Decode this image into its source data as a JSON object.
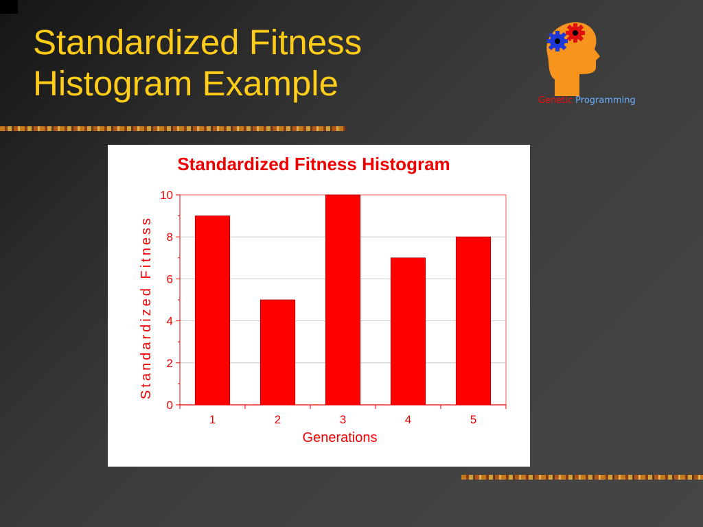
{
  "slide": {
    "title_line1": "Standardized Fitness",
    "title_line2": "Histogram Example",
    "title_color": "#ffcc1a"
  },
  "logo": {
    "icon": "head-with-gears-icon",
    "caption_word1": "Genetic",
    "caption_word2": "Programming",
    "caption_color1": "#ee1111",
    "caption_color2": "#6ab0ff"
  },
  "chart_data": {
    "type": "bar",
    "title": "Standardized Fitness Histogram",
    "xlabel": "Generations",
    "ylabel": "Standardized Fitness",
    "categories": [
      "1",
      "2",
      "3",
      "4",
      "5"
    ],
    "values": [
      9,
      5,
      10,
      7,
      8
    ],
    "ylim": [
      0,
      10
    ],
    "yticks": [
      "0",
      "2",
      "4",
      "6",
      "8",
      "10"
    ],
    "grid": true,
    "legend": "none",
    "bar_color": "#ff0000",
    "text_color": "#ee0000"
  }
}
